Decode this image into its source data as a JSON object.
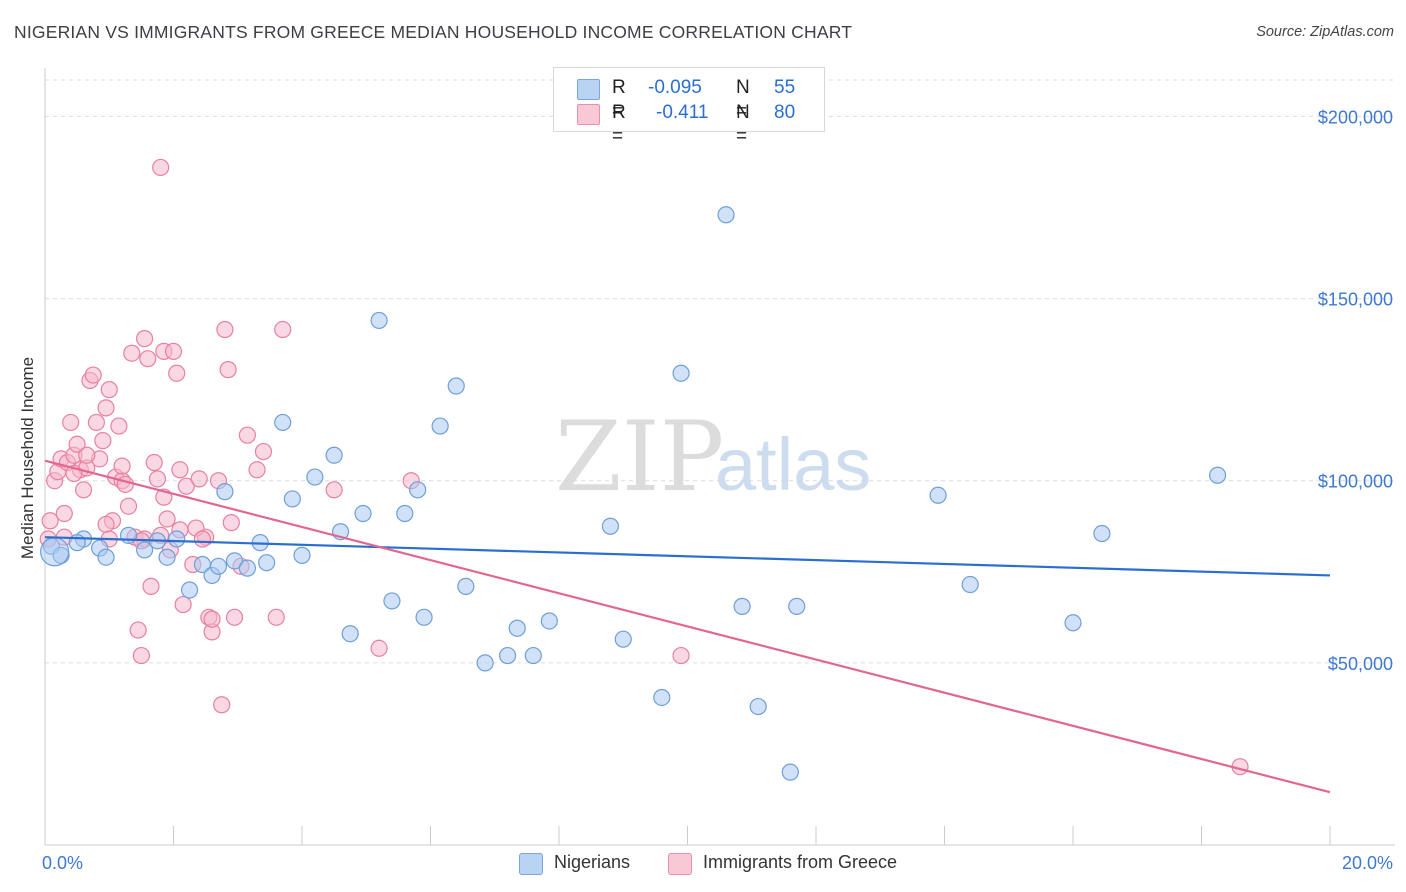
{
  "title": "NIGERIAN VS IMMIGRANTS FROM GREECE MEDIAN HOUSEHOLD INCOME CORRELATION CHART",
  "source": "Source: ZipAtlas.com",
  "watermark": {
    "zip": "ZIP",
    "atlas": "atlas"
  },
  "colors": {
    "blue_fill": "#a9c9f2",
    "blue_stroke": "#6f9fd8",
    "blue_line": "#2a6fd0",
    "pink_fill": "#f6b8cc",
    "pink_stroke": "#e8819f",
    "pink_line": "#e26790",
    "axis_text": "#3e79d1",
    "grid": "#dcdcdc"
  },
  "legend": {
    "rows": [
      {
        "r_label": "R =",
        "r_value": "-0.095",
        "n_label": "N =",
        "n_value": "55"
      },
      {
        "r_label": "R =",
        "r_value": "-0.411",
        "n_label": "N =",
        "n_value": "80"
      }
    ]
  },
  "bottom_legend": [
    "Nigerians",
    "Immigrants from Greece"
  ],
  "chart_data": {
    "type": "scatter",
    "title": "NIGERIAN VS IMMIGRANTS FROM GREECE MEDIAN HOUSEHOLD INCOME CORRELATION CHART",
    "xlabel": "",
    "ylabel": "Median Household Income",
    "xlim": [
      0,
      20
    ],
    "ylim": [
      0,
      210000
    ],
    "x_tick_labels": [
      "0.0%",
      "20.0%"
    ],
    "y_ticks": [
      50000,
      100000,
      150000,
      200000
    ],
    "y_tick_labels": [
      "$50,000",
      "$100,000",
      "$150,000",
      "$200,000"
    ],
    "grid": true,
    "legend_position": "top-center",
    "series": [
      {
        "name": "Nigerians",
        "r": -0.095,
        "n": 55,
        "trend": {
          "x": [
            0,
            20
          ],
          "y": [
            84500,
            74000
          ]
        },
        "points": [
          [
            0.1,
            82000
          ],
          [
            0.25,
            79500
          ],
          [
            0.6,
            84000
          ],
          [
            0.85,
            81500
          ],
          [
            0.95,
            79000
          ],
          [
            1.3,
            85000
          ],
          [
            1.55,
            81000
          ],
          [
            1.9,
            79000
          ],
          [
            2.05,
            84000
          ],
          [
            2.25,
            70000
          ],
          [
            2.45,
            77000
          ],
          [
            2.6,
            74000
          ],
          [
            2.8,
            97000
          ],
          [
            2.95,
            78000
          ],
          [
            3.15,
            76000
          ],
          [
            3.35,
            83000
          ],
          [
            3.45,
            77500
          ],
          [
            3.7,
            116000
          ],
          [
            3.85,
            95000
          ],
          [
            4.0,
            79500
          ],
          [
            4.2,
            101000
          ],
          [
            4.5,
            107000
          ],
          [
            4.6,
            86000
          ],
          [
            4.75,
            58000
          ],
          [
            4.95,
            91000
          ],
          [
            5.2,
            144000
          ],
          [
            5.4,
            67000
          ],
          [
            5.6,
            91000
          ],
          [
            5.8,
            97500
          ],
          [
            5.9,
            62500
          ],
          [
            6.15,
            115000
          ],
          [
            6.4,
            126000
          ],
          [
            6.55,
            71000
          ],
          [
            6.85,
            50000
          ],
          [
            7.2,
            52000
          ],
          [
            7.35,
            59500
          ],
          [
            7.6,
            52000
          ],
          [
            7.85,
            61500
          ],
          [
            8.8,
            87500
          ],
          [
            9.0,
            56500
          ],
          [
            9.6,
            40500
          ],
          [
            9.9,
            129500
          ],
          [
            10.6,
            173000
          ],
          [
            10.85,
            65500
          ],
          [
            11.1,
            38000
          ],
          [
            11.6,
            20000
          ],
          [
            11.7,
            65500
          ],
          [
            13.9,
            96000
          ],
          [
            14.4,
            71500
          ],
          [
            16.0,
            61000
          ],
          [
            16.45,
            85500
          ],
          [
            18.25,
            101500
          ],
          [
            0.5,
            83000
          ],
          [
            1.75,
            83500
          ],
          [
            2.7,
            76500
          ]
        ]
      },
      {
        "name": "Immigrants from Greece",
        "r": -0.411,
        "n": 80,
        "trend": {
          "x": [
            0,
            20
          ],
          "y": [
            105500,
            14500
          ]
        },
        "points": [
          [
            0.05,
            84000
          ],
          [
            0.08,
            89000
          ],
          [
            0.15,
            100000
          ],
          [
            0.2,
            102500
          ],
          [
            0.25,
            106000
          ],
          [
            0.3,
            91000
          ],
          [
            0.35,
            105000
          ],
          [
            0.4,
            116000
          ],
          [
            0.45,
            107000
          ],
          [
            0.5,
            110000
          ],
          [
            0.55,
            103000
          ],
          [
            0.6,
            97500
          ],
          [
            0.65,
            103500
          ],
          [
            0.7,
            127500
          ],
          [
            0.75,
            129000
          ],
          [
            0.8,
            116000
          ],
          [
            0.85,
            106000
          ],
          [
            0.9,
            111000
          ],
          [
            0.95,
            120000
          ],
          [
            1.0,
            125000
          ],
          [
            1.05,
            89000
          ],
          [
            1.1,
            101000
          ],
          [
            1.15,
            115000
          ],
          [
            1.2,
            100000
          ],
          [
            1.25,
            99000
          ],
          [
            1.3,
            93000
          ],
          [
            1.35,
            135000
          ],
          [
            1.4,
            84500
          ],
          [
            1.45,
            59000
          ],
          [
            1.5,
            52000
          ],
          [
            1.55,
            139000
          ],
          [
            1.6,
            133500
          ],
          [
            1.65,
            71000
          ],
          [
            1.7,
            105000
          ],
          [
            1.75,
            100500
          ],
          [
            1.8,
            85000
          ],
          [
            1.85,
            135500
          ],
          [
            1.9,
            89500
          ],
          [
            1.95,
            81000
          ],
          [
            2.0,
            135500
          ],
          [
            2.05,
            129500
          ],
          [
            2.1,
            103000
          ],
          [
            2.15,
            66000
          ],
          [
            2.2,
            98500
          ],
          [
            2.3,
            77000
          ],
          [
            2.4,
            100500
          ],
          [
            2.5,
            84500
          ],
          [
            2.55,
            62500
          ],
          [
            2.6,
            58500
          ],
          [
            2.7,
            100000
          ],
          [
            2.8,
            141500
          ],
          [
            2.85,
            130500
          ],
          [
            2.95,
            62500
          ],
          [
            3.05,
            76500
          ],
          [
            3.15,
            112500
          ],
          [
            3.3,
            103000
          ],
          [
            3.4,
            108000
          ],
          [
            3.6,
            62500
          ],
          [
            3.7,
            141500
          ],
          [
            4.5,
            97500
          ],
          [
            5.2,
            54000
          ],
          [
            5.7,
            100000
          ],
          [
            9.9,
            52000
          ],
          [
            18.6,
            21500
          ],
          [
            2.75,
            38500
          ],
          [
            1.8,
            186000
          ],
          [
            0.3,
            84500
          ],
          [
            0.95,
            88000
          ],
          [
            1.55,
            84000
          ],
          [
            2.1,
            86500
          ],
          [
            2.9,
            88500
          ],
          [
            1.2,
            104000
          ],
          [
            0.45,
            102000
          ],
          [
            1.85,
            95500
          ],
          [
            2.6,
            62000
          ],
          [
            2.35,
            87000
          ],
          [
            1.0,
            84000
          ],
          [
            0.65,
            107000
          ],
          [
            1.5,
            83500
          ],
          [
            2.45,
            84000
          ]
        ]
      }
    ]
  }
}
